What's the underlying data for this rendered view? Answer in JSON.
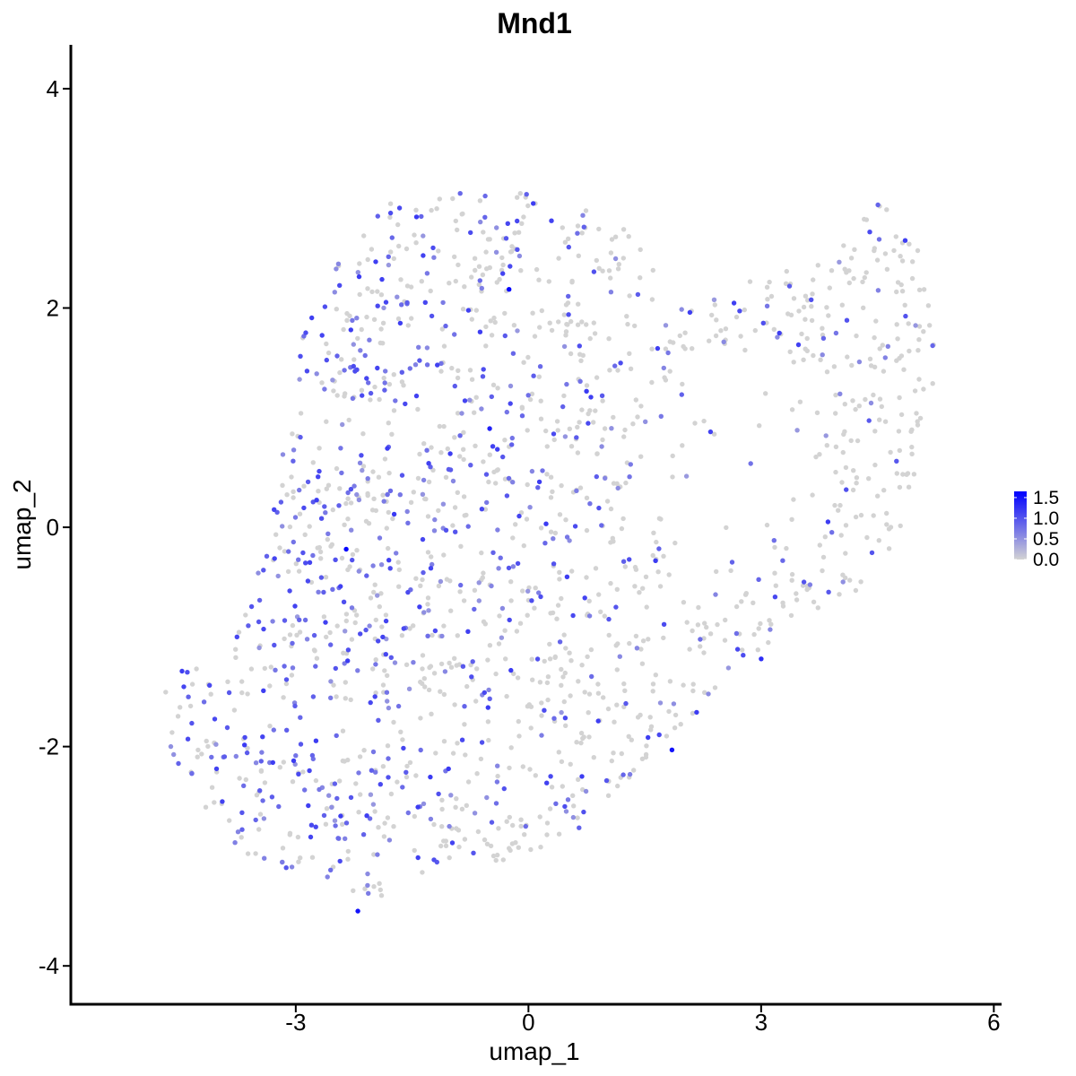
{
  "chart_data": {
    "type": "scatter",
    "title": "Mnd1",
    "xlabel": "umap_1",
    "ylabel": "umap_2",
    "xlim": [
      -5.9,
      6.1
    ],
    "ylim": [
      -4.35,
      4.4
    ],
    "x_ticks": [
      -3,
      0,
      3,
      6
    ],
    "y_ticks": [
      -4,
      -2,
      0,
      2,
      4
    ],
    "x_tick_labels": [
      "-3",
      "0",
      "3",
      "6"
    ],
    "y_tick_labels": [
      "-4",
      "-2",
      "0",
      "2",
      "4"
    ],
    "grid": false,
    "legend": {
      "position": "right",
      "type": "colorbar",
      "labels": [
        "1.5",
        "1.0",
        "0.5",
        "0.0"
      ],
      "values": [
        1.5,
        1.0,
        0.5,
        0.0
      ],
      "range": [
        0,
        1.65
      ]
    },
    "color_low": "#d3d3d3",
    "color_high": "#0000ff",
    "n_cells": 1750,
    "region": {
      "main_body_polygon": [
        [
          -4.5,
          -1.3
        ],
        [
          -3.9,
          -1.25
        ],
        [
          -3.6,
          -0.6
        ],
        [
          -3.3,
          0.1
        ],
        [
          -3.1,
          1.0
        ],
        [
          -2.9,
          1.9
        ],
        [
          -2.4,
          2.5
        ],
        [
          -1.9,
          2.95
        ],
        [
          -1.0,
          3.05
        ],
        [
          0.3,
          3.05
        ],
        [
          1.3,
          2.7
        ],
        [
          2.1,
          2.0
        ],
        [
          3.0,
          2.3
        ],
        [
          4.0,
          2.55
        ],
        [
          4.5,
          3.0
        ],
        [
          5.0,
          2.6
        ],
        [
          5.35,
          2.1
        ],
        [
          5.2,
          1.2
        ],
        [
          4.9,
          0.0
        ],
        [
          4.2,
          -0.6
        ],
        [
          3.5,
          -0.9
        ],
        [
          2.9,
          -1.2
        ],
        [
          2.4,
          -1.6
        ],
        [
          1.6,
          -2.1
        ],
        [
          0.7,
          -2.8
        ],
        [
          0.0,
          -3.0
        ],
        [
          -1.2,
          -3.15
        ],
        [
          -2.0,
          -3.4
        ],
        [
          -2.7,
          -3.2
        ],
        [
          -3.5,
          -3.1
        ],
        [
          -4.1,
          -2.7
        ],
        [
          -4.6,
          -2.1
        ],
        [
          -4.8,
          -1.6
        ]
      ],
      "hole_center": [
        2.7,
        0.55
      ],
      "hole_radius": [
        1.25,
        1.15
      ]
    },
    "notable_points": [
      {
        "x": -0.25,
        "y": 2.17,
        "value": 1.6
      },
      {
        "x": -2.35,
        "y": -0.2,
        "value": 1.6
      },
      {
        "x": -2.2,
        "y": -3.5,
        "value": 1.5
      },
      {
        "x": 1.85,
        "y": -2.03,
        "value": 1.5
      },
      {
        "x": 3.0,
        "y": -1.2,
        "value": 1.3
      },
      {
        "x": -0.5,
        "y": 0.9,
        "value": 1.4
      }
    ]
  }
}
